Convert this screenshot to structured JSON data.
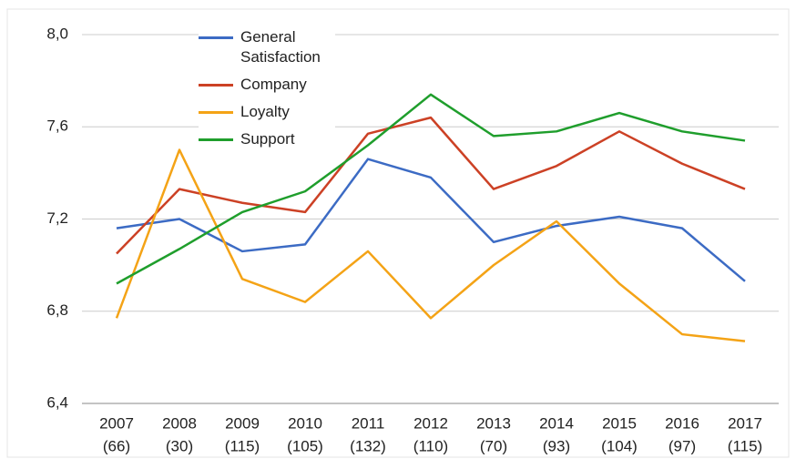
{
  "chart_data": {
    "type": "line",
    "categories": [
      "2007",
      "2008",
      "2009",
      "2010",
      "2011",
      "2012",
      "2013",
      "2014",
      "2015",
      "2016",
      "2017"
    ],
    "category_sublabels": [
      "(66)",
      "(30)",
      "(115)",
      "(105)",
      "(132)",
      "(110)",
      "(70)",
      "(93)",
      "(104)",
      "(97)",
      "(115)"
    ],
    "series": [
      {
        "name": "General Satisfaction",
        "color": "#3c6bc4",
        "values": [
          7.16,
          7.2,
          7.06,
          7.09,
          7.46,
          7.38,
          7.1,
          7.17,
          7.21,
          7.16,
          6.93
        ]
      },
      {
        "name": "Company",
        "color": "#cc4125",
        "values": [
          7.05,
          7.33,
          7.27,
          7.23,
          7.57,
          7.64,
          7.33,
          7.43,
          7.58,
          7.44,
          7.33
        ]
      },
      {
        "name": "Loyalty",
        "color": "#f4a316",
        "values": [
          6.77,
          7.5,
          6.94,
          6.84,
          7.06,
          6.77,
          7.0,
          7.19,
          6.92,
          6.7,
          6.67
        ]
      },
      {
        "name": "Support",
        "color": "#1f9e2c",
        "values": [
          6.92,
          7.07,
          7.23,
          7.32,
          7.52,
          7.74,
          7.56,
          7.58,
          7.66,
          7.58,
          7.54
        ]
      }
    ],
    "ylim": [
      6.4,
      8.0
    ],
    "yticks": [
      {
        "value": 6.4,
        "label": "6,4"
      },
      {
        "value": 6.8,
        "label": "6,8"
      },
      {
        "value": 7.2,
        "label": "7,2"
      },
      {
        "value": 7.6,
        "label": "7,6"
      },
      {
        "value": 8.0,
        "label": "8,0"
      }
    ],
    "grid": true,
    "legend": "top-left"
  }
}
